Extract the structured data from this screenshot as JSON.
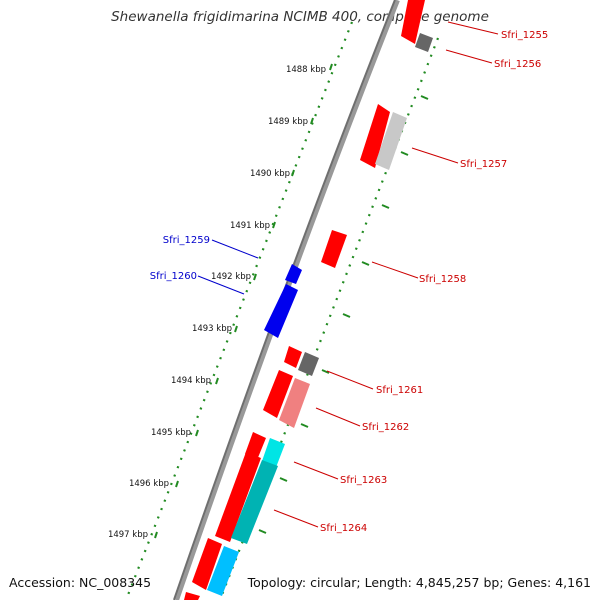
{
  "title": "Shewanella frigidimarina NCIMB 400, complete genome",
  "footer": {
    "accession": "Accession: NC_008345",
    "summary": "Topology: circular; Length: 4,845,257 bp; Genes: 4,161"
  },
  "colors": {
    "forward_label": "#cc0000",
    "reverse_label": "#0000cc",
    "tick": "#228b22",
    "backbone": "#808080"
  },
  "ticks": [
    "1488 kbp",
    "1489 kbp",
    "1490 kbp",
    "1491 kbp",
    "1492 kbp",
    "1493 kbp",
    "1494 kbp",
    "1495 kbp",
    "1496 kbp",
    "1497 kbp"
  ],
  "gene_labels": {
    "forward": [
      "Sfri_1255",
      "Sfri_1256",
      "Sfri_1257",
      "Sfri_1258",
      "Sfri_1261",
      "Sfri_1262",
      "Sfri_1263",
      "Sfri_1264"
    ],
    "reverse": [
      "Sfri_1259",
      "Sfri_1260"
    ]
  }
}
